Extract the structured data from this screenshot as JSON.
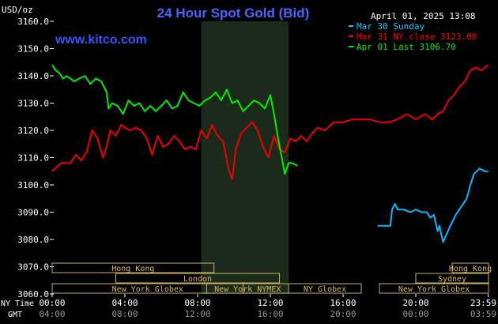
{
  "chart_data": {
    "type": "line",
    "title": "24 Hour Spot Gold (Bid)",
    "yunit": "USD/oz",
    "watermark": "www.kitco.com",
    "timestamp": "April 01, 2025 13:08",
    "ylim": [
      3060,
      3160
    ],
    "yticks": [
      3060,
      3070,
      3080,
      3090,
      3100,
      3110,
      3120,
      3130,
      3140,
      3150,
      3160
    ],
    "ytick_labels": [
      "3060.0",
      "3070.0",
      "3080.0",
      "3090.0",
      "3100.0",
      "3110.0",
      "3120.0",
      "3130.0",
      "3140.0",
      "3150.0",
      "3160.0"
    ],
    "xlim": [
      0,
      24
    ],
    "x_ticks_ny": [
      0,
      4,
      8,
      12,
      16,
      20,
      23.98
    ],
    "x_tick_labels_ny": [
      "00:00",
      "04:00",
      "08:00",
      "12:00",
      "16:00",
      "20:00",
      "23:59"
    ],
    "x_tick_labels_gmt": [
      "04:00",
      "08:00",
      "12:00",
      "16:00",
      "20:00",
      "00:00",
      "03:59"
    ],
    "x_row_labels": {
      "ny": "NY Time",
      "gmt": "GMT"
    },
    "shaded_range": [
      8.2,
      13.0
    ],
    "legend": [
      {
        "label": "Mar 30 Sunday",
        "color": "#00ccff"
      },
      {
        "label": "Mar 31 NY close 3123.00",
        "color": "#ff0000"
      },
      {
        "label": "Apr 01 Last 3106.70",
        "color": "#00ee00"
      }
    ],
    "series": [
      {
        "name": "Mar 30 Sunday",
        "color": "#00bbff",
        "x": [
          17.9,
          18.6,
          18.7,
          18.85,
          19.0,
          19.3,
          19.7,
          20.0,
          20.3,
          20.6,
          20.8,
          21.0,
          21.2,
          21.3,
          21.5,
          21.7,
          21.9,
          22.2,
          22.5,
          22.8,
          23.0,
          23.2,
          23.5,
          23.8,
          23.98
        ],
        "y": [
          3085,
          3085,
          3091,
          3093,
          3091,
          3091,
          3090,
          3091,
          3090,
          3090,
          3088,
          3089,
          3083,
          3085,
          3079,
          3082,
          3085,
          3089,
          3092,
          3095,
          3100,
          3104,
          3106,
          3105,
          3105
        ]
      },
      {
        "name": "Mar 31 NY close 3123.00",
        "color": "#ee0000",
        "x": [
          0,
          0.5,
          1.0,
          1.3,
          1.6,
          1.9,
          2.2,
          2.5,
          2.8,
          3.0,
          3.2,
          3.5,
          3.8,
          4.0,
          4.3,
          4.6,
          4.9,
          5.2,
          5.5,
          5.8,
          6.1,
          6.4,
          6.7,
          7.0,
          7.3,
          7.6,
          7.9,
          8.2,
          8.5,
          8.8,
          9.1,
          9.4,
          9.7,
          9.9,
          10.1,
          10.4,
          10.7,
          11.0,
          11.3,
          11.6,
          11.9,
          12.2,
          12.5,
          12.8,
          13.1,
          13.4,
          13.7,
          14.0,
          14.3,
          14.6,
          15.0,
          15.5,
          16.0,
          16.5,
          17.0,
          17.5,
          18.0,
          18.5,
          19.0,
          19.5,
          20.0,
          20.5,
          20.9,
          21.2,
          21.5,
          21.8,
          22.1,
          22.4,
          22.7,
          23.0,
          23.3,
          23.6,
          23.98
        ],
        "y": [
          3105,
          3108,
          3108,
          3111,
          3109,
          3112,
          3120,
          3117,
          3110,
          3114,
          3120,
          3118,
          3122,
          3121,
          3120,
          3121,
          3120,
          3117,
          3111,
          3118,
          3114,
          3115,
          3118,
          3116,
          3113,
          3114,
          3113,
          3120,
          3117,
          3122,
          3118,
          3116,
          3106,
          3102,
          3113,
          3119,
          3121,
          3123,
          3120,
          3114,
          3110,
          3118,
          3113,
          3112,
          3117,
          3116,
          3118,
          3116,
          3119,
          3121,
          3120,
          3123,
          3123,
          3124,
          3124,
          3124,
          3123,
          3123,
          3124,
          3126,
          3124,
          3126,
          3124,
          3126,
          3127,
          3131,
          3133,
          3136,
          3138,
          3142,
          3143,
          3142,
          3144
        ]
      },
      {
        "name": "Apr 01 Last 3106.70",
        "color": "#00ee00",
        "x": [
          0,
          0.2,
          0.4,
          0.6,
          0.8,
          1.0,
          1.2,
          1.5,
          1.8,
          2.1,
          2.4,
          2.7,
          3.0,
          3.1,
          3.3,
          3.6,
          3.9,
          4.2,
          4.5,
          4.8,
          5.1,
          5.4,
          5.7,
          6.0,
          6.3,
          6.6,
          6.9,
          7.2,
          7.5,
          7.8,
          8.1,
          8.4,
          8.7,
          9.0,
          9.3,
          9.6,
          9.9,
          10.2,
          10.5,
          10.8,
          11.1,
          11.4,
          11.7,
          12.0,
          12.2,
          12.4,
          12.6,
          12.8,
          13.0,
          13.2,
          13.5
        ],
        "y": [
          3144,
          3142,
          3141,
          3139,
          3140,
          3139,
          3138,
          3139,
          3140,
          3137,
          3139,
          3138,
          3134,
          3128,
          3130,
          3129,
          3126,
          3131,
          3129,
          3130,
          3127,
          3129,
          3127,
          3129,
          3131,
          3128,
          3129,
          3134,
          3131,
          3130,
          3129,
          3131,
          3132,
          3134,
          3131,
          3135,
          3130,
          3131,
          3127,
          3129,
          3131,
          3130,
          3128,
          3133,
          3126,
          3118,
          3111,
          3104,
          3108,
          3108,
          3107
        ]
      }
    ],
    "session_bars": [
      {
        "label": "Hong Kong",
        "row": 0,
        "ranges": [
          [
            0,
            8.9
          ]
        ]
      },
      {
        "label": "London",
        "row": 1,
        "ranges": [
          [
            3.5,
            12.5
          ]
        ]
      },
      {
        "label": "New York Globex",
        "row": 2,
        "ranges": [
          [
            0,
            10.5
          ]
        ]
      },
      {
        "label": "New York NYMEX",
        "row": 2,
        "ranges": [
          [
            8.5,
            13.0
          ]
        ]
      },
      {
        "label": "NY Globex",
        "row": 2,
        "ranges": [
          [
            13.0,
            17.0
          ]
        ]
      },
      {
        "label": "Hong Kong",
        "row": 0,
        "ranges": [
          [
            22.0,
            24.0
          ]
        ]
      },
      {
        "label": "Sydney",
        "row": 1,
        "ranges": [
          [
            20.0,
            24.0
          ]
        ]
      },
      {
        "label": "New York Globex",
        "row": 2,
        "ranges": [
          [
            18.0,
            24.0
          ]
        ]
      }
    ],
    "grid": false,
    "legend_placement": "top-right"
  }
}
